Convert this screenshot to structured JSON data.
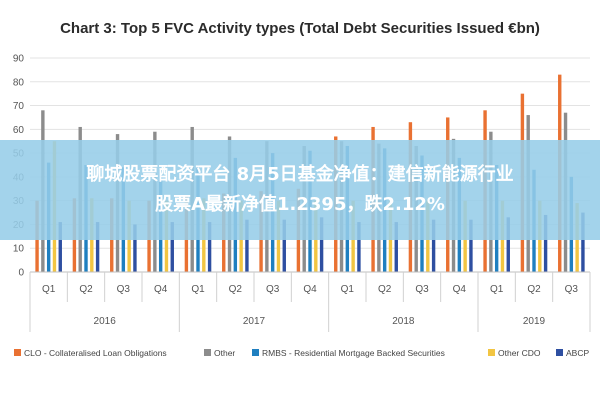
{
  "overlay": {
    "line1": "聊城股票配资平台 8月5日基金净值：建信新能源行业",
    "line2": "股票A最新净值1.2395，跌2.12%"
  },
  "colors": {
    "CLO": "#e97132",
    "Other": "#8c8c8c",
    "RMBS": "#1f7fc0",
    "OtherCDO": "#f2c542",
    "ABCP": "#2e4fa1"
  },
  "chart_data": {
    "type": "bar",
    "title": "Chart 3: Top 5 FVC Activity types (Total Debt Securities Issued €bn)",
    "xlabel": "",
    "ylabel": "",
    "ylim": [
      0,
      90
    ],
    "yticks": [
      0,
      10,
      20,
      30,
      40,
      50,
      60,
      70,
      80,
      90
    ],
    "grid": true,
    "legend_position": "bottom",
    "categories": [
      "Q1",
      "Q2",
      "Q3",
      "Q4",
      "Q1",
      "Q2",
      "Q3",
      "Q4",
      "Q1",
      "Q2",
      "Q3",
      "Q4",
      "Q1",
      "Q2",
      "Q3"
    ],
    "year_groups": [
      {
        "label": "2016",
        "span": 4
      },
      {
        "label": "2017",
        "span": 4
      },
      {
        "label": "2018",
        "span": 4
      },
      {
        "label": "2019",
        "span": 3
      }
    ],
    "series": [
      {
        "name": "CLO - Collateralised Loan Obligations",
        "key": "CLO",
        "values": [
          30,
          31,
          31,
          30,
          32,
          33,
          34,
          35,
          57,
          61,
          63,
          65,
          68,
          75,
          83
        ]
      },
      {
        "name": "Other",
        "key": "Other",
        "values": [
          68,
          61,
          58,
          59,
          61,
          57,
          55,
          53,
          55,
          54,
          53,
          56,
          59,
          66,
          67
        ]
      },
      {
        "name": "RMBS - Residential Mortgage Backed Securities",
        "key": "RMBS",
        "values": [
          46,
          45,
          44,
          43,
          45,
          48,
          50,
          51,
          53,
          52,
          49,
          48,
          45,
          43,
          40
        ]
      },
      {
        "name": "Other CDO",
        "key": "OtherCDO",
        "values": [
          55,
          31,
          30,
          30,
          31,
          30,
          30,
          30,
          30,
          30,
          30,
          30,
          30,
          30,
          29
        ]
      },
      {
        "name": "ABCP",
        "key": "ABCP",
        "values": [
          21,
          21,
          20,
          21,
          21,
          22,
          22,
          23,
          21,
          21,
          22,
          22,
          23,
          24,
          25
        ]
      }
    ]
  }
}
